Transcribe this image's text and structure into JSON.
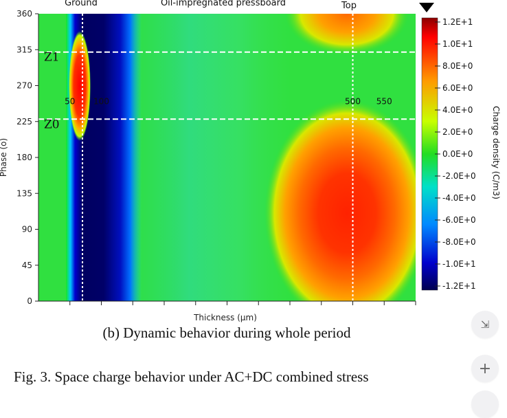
{
  "chart_data": {
    "type": "heatmap",
    "top_labels": [
      "Ground",
      "Oil-impregnated pressboard",
      "Top"
    ],
    "xlabel": "Thickness (μm)",
    "ylabel": "Phase (o)",
    "xlim": [
      0,
      600
    ],
    "ylim": [
      0,
      360
    ],
    "y_ticks": [
      0,
      45,
      90,
      135,
      180,
      225,
      270,
      315,
      360
    ],
    "y_tick_labels": [
      "0",
      "45",
      "90",
      "135",
      "180",
      "225",
      "270",
      "315",
      "360"
    ],
    "x_ticks": [
      50,
      100,
      150,
      200,
      250,
      300,
      350,
      400,
      450,
      500,
      550,
      600
    ],
    "vertical_markers": [
      70,
      500
    ],
    "horizontal_markers": [
      {
        "phase": 312,
        "label": "Z1"
      },
      {
        "phase": 228,
        "label": "Z0"
      }
    ],
    "annotations": [
      {
        "text": "50",
        "x": 50,
        "y": 250
      },
      {
        "text": "100",
        "x": 100,
        "y": 250
      },
      {
        "text": "500",
        "x": 500,
        "y": 250
      },
      {
        "text": "550",
        "x": 550,
        "y": 250
      }
    ],
    "colorbar": {
      "label": "Charge density (C/m3)",
      "min": -12,
      "max": 12,
      "tick_values": [
        12,
        10,
        8,
        6,
        4,
        2,
        0,
        -2,
        -4,
        -6,
        -8,
        -10,
        -12
      ],
      "tick_labels": [
        "1.2E+1",
        "1.0E+1",
        "8.0E+0",
        "6.0E+0",
        "4.0E+0",
        "2.0E+0",
        "0.0E+0",
        "-2.0E+0",
        "-4.0E+0",
        "-6.0E+0",
        "-8.0E+0",
        "-1.0E+1",
        "-1.2E+1"
      ]
    },
    "features": [
      {
        "name": "negative band (ground side)",
        "x_range": [
          70,
          150
        ],
        "phase_range": [
          0,
          360
        ],
        "value": -12
      },
      {
        "name": "positive peak near ground",
        "x": 65,
        "phase_range": [
          200,
          330
        ],
        "value": 10
      },
      {
        "name": "positive hot spot near top",
        "x": 500,
        "phase": 95,
        "value": 11
      },
      {
        "name": "positive region top-right",
        "x": 500,
        "phase": 350,
        "value": 6
      },
      {
        "name": "slightly negative pressboard",
        "x_range": [
          200,
          330
        ],
        "value": -2
      }
    ]
  },
  "subcaption": "(b) Dynamic behavior during whole period",
  "caption": "Fig. 3.  Space charge behavior under AC+DC combined stress",
  "side_buttons": {
    "collapse_symbol": "⇲",
    "plus_symbol": "+"
  },
  "colors": {
    "marker_line": "#ffffff",
    "axis": "#222222"
  }
}
